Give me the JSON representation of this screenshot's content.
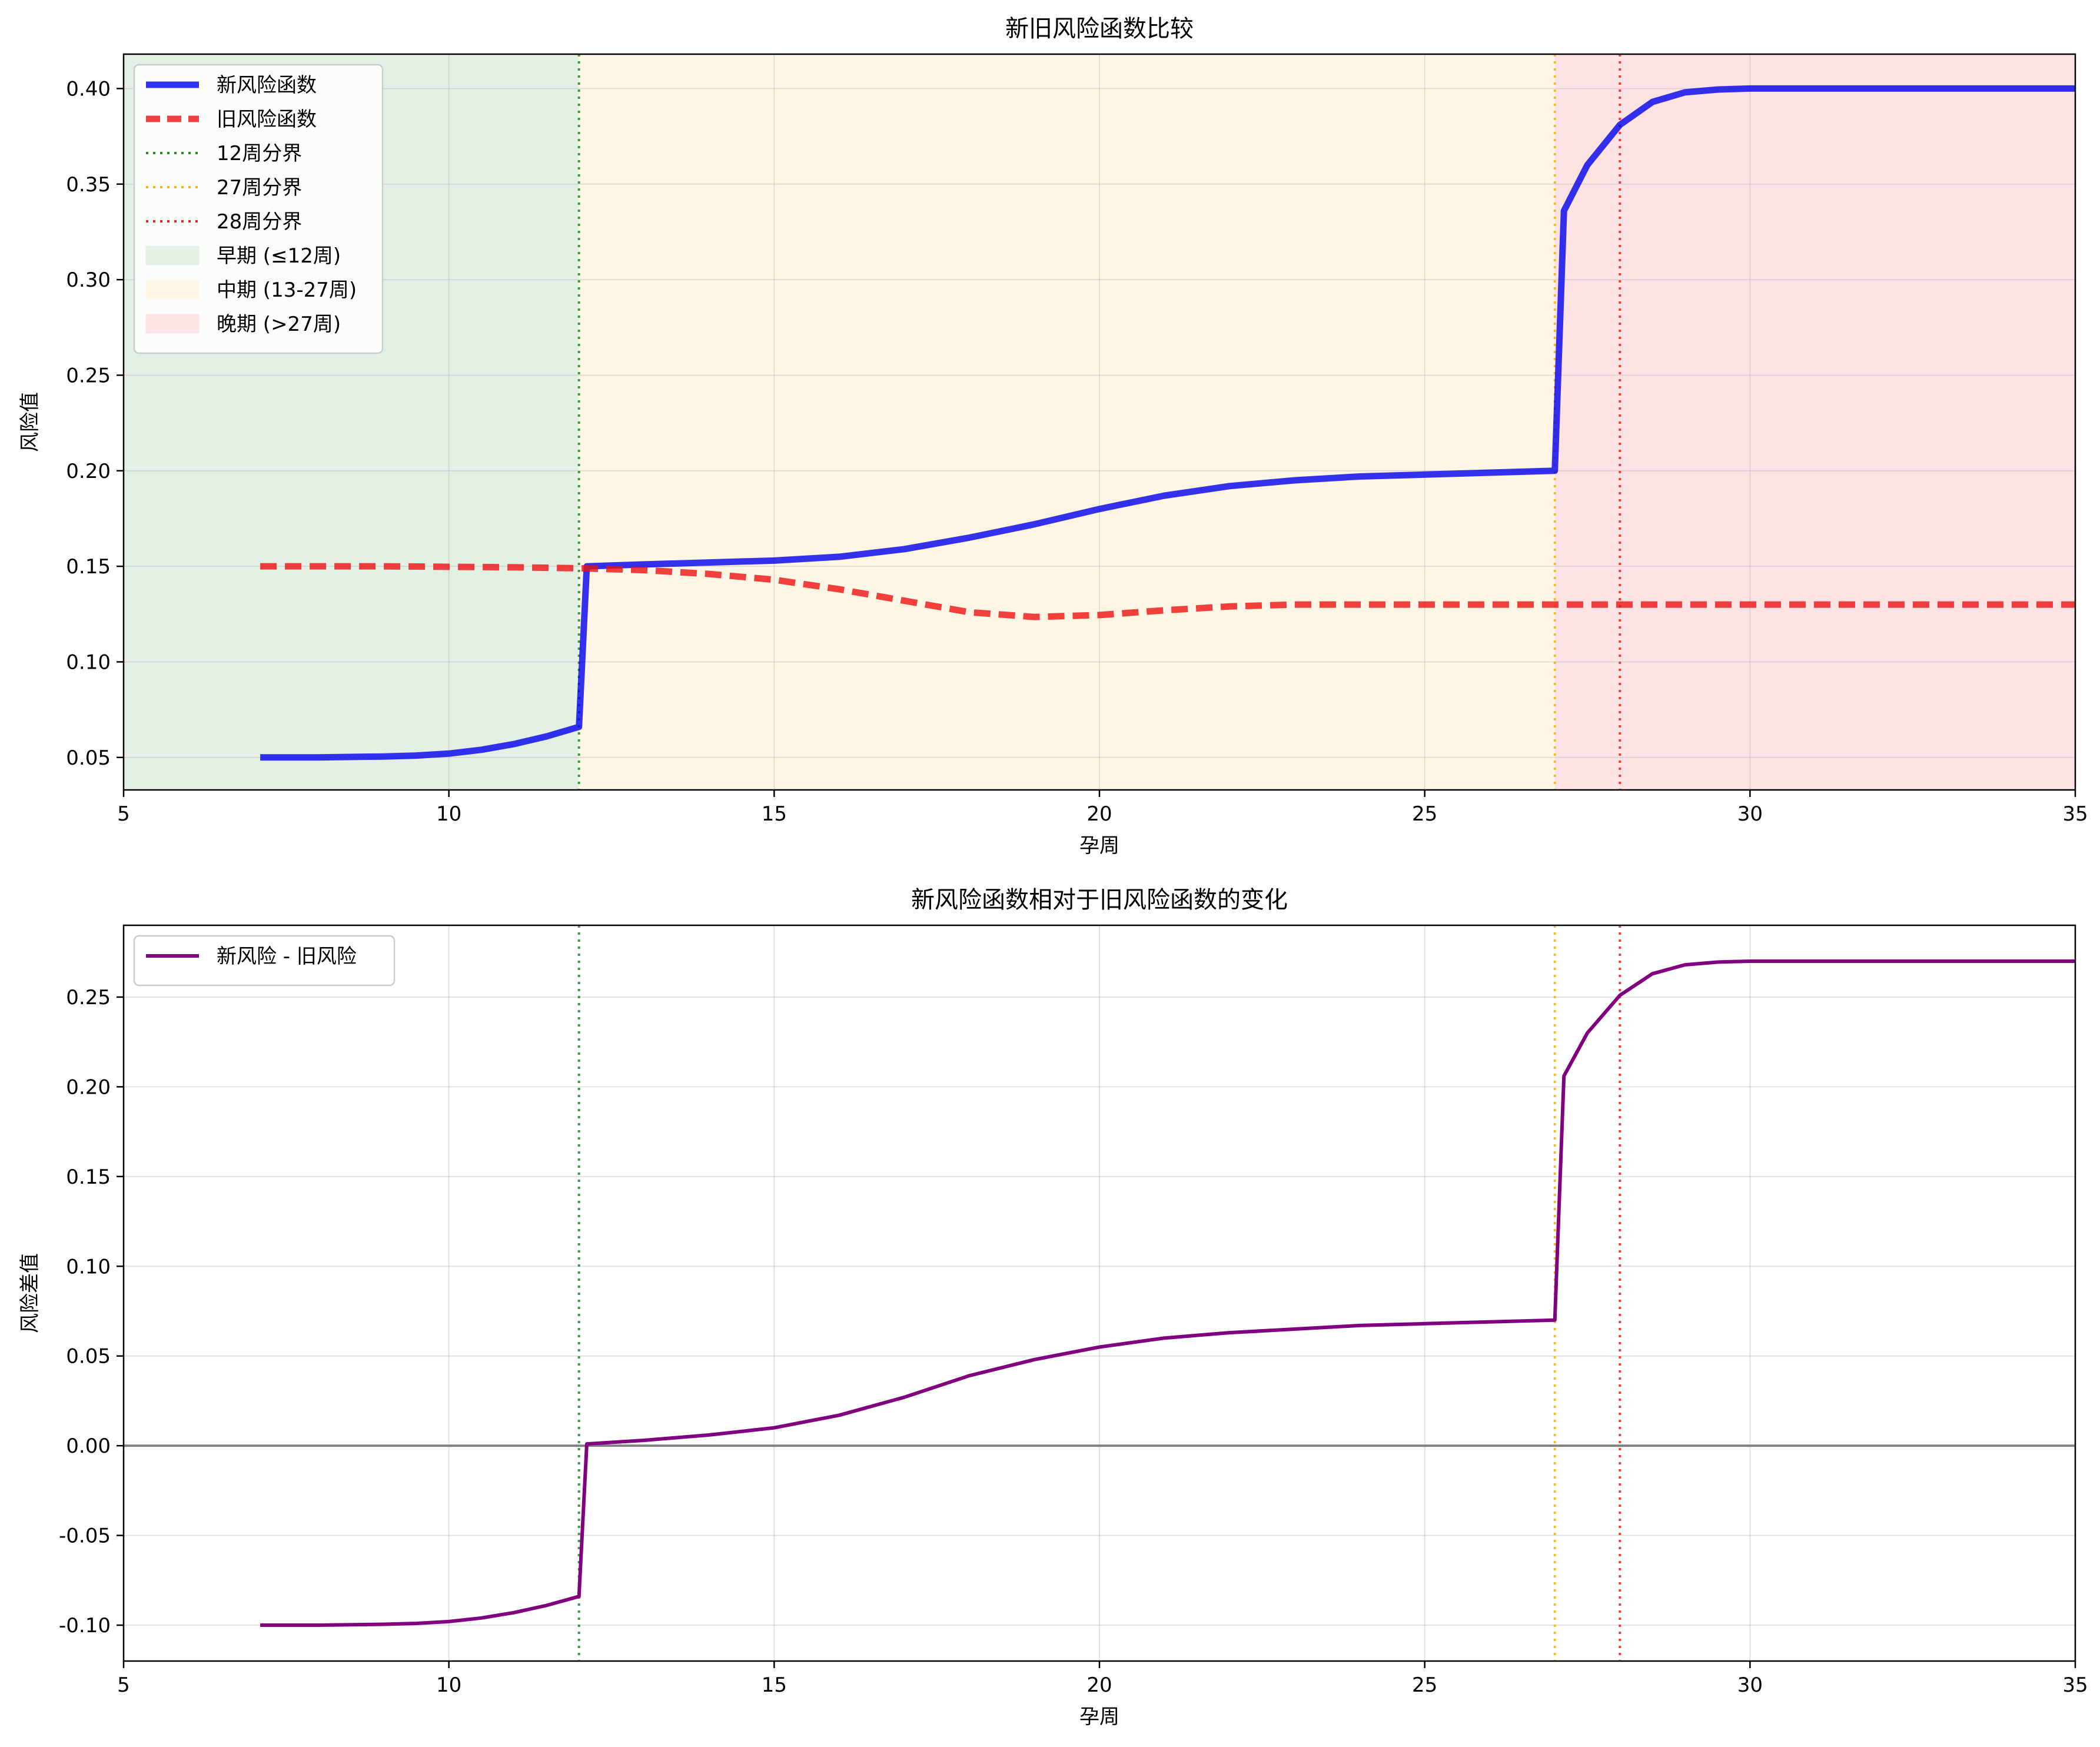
{
  "chart_data": [
    {
      "type": "line",
      "title": "新旧风险函数比较",
      "xlabel": "孕周",
      "ylabel": "风险值",
      "xlim": [
        5,
        35
      ],
      "ylim": [
        0.033,
        0.418
      ],
      "xticks": [
        5,
        10,
        15,
        20,
        25,
        30,
        35
      ],
      "xtick_labels": [
        "5",
        "10",
        "15",
        "20",
        "25",
        "30",
        "35"
      ],
      "yticks": [
        0.05,
        0.1,
        0.15,
        0.2,
        0.25,
        0.3,
        0.35,
        0.4
      ],
      "ytick_labels": [
        "0.05",
        "0.10",
        "0.15",
        "0.20",
        "0.25",
        "0.30",
        "0.35",
        "0.40"
      ],
      "grid": true,
      "legend_position": "top-left",
      "series": [
        {
          "name": "新风险函数",
          "color": "#0000ee",
          "style": "solid",
          "x": [
            7.1,
            8,
            9,
            9.5,
            10,
            10.5,
            11,
            11.5,
            12,
            12.12,
            13,
            14,
            15,
            16,
            17,
            18,
            19,
            20,
            21,
            22,
            23,
            24,
            25,
            26,
            27,
            27.14,
            27.5,
            28,
            28.5,
            29,
            29.5,
            30,
            31,
            32,
            33,
            34,
            35
          ],
          "y": [
            0.05,
            0.05,
            0.0505,
            0.051,
            0.052,
            0.054,
            0.057,
            0.061,
            0.066,
            0.15,
            0.151,
            0.152,
            0.153,
            0.155,
            0.159,
            0.165,
            0.172,
            0.18,
            0.187,
            0.192,
            0.195,
            0.197,
            0.198,
            0.199,
            0.2,
            0.336,
            0.36,
            0.381,
            0.393,
            0.398,
            0.3995,
            0.4,
            0.4,
            0.4,
            0.4,
            0.4,
            0.4
          ]
        },
        {
          "name": "旧风险函数",
          "color": "#ee1111",
          "style": "dashed",
          "x": [
            7.1,
            9,
            11,
            12,
            13,
            14,
            15,
            16,
            17,
            18,
            19,
            20,
            21,
            22,
            23,
            24,
            25,
            27,
            30,
            35
          ],
          "y": [
            0.15,
            0.15,
            0.1495,
            0.149,
            0.148,
            0.146,
            0.143,
            0.138,
            0.132,
            0.126,
            0.1235,
            0.1245,
            0.127,
            0.129,
            0.13,
            0.13,
            0.13,
            0.13,
            0.13,
            0.13
          ]
        }
      ],
      "vlines": [
        {
          "name": "12周分界",
          "x": 12,
          "color": "#228b22"
        },
        {
          "name": "27周分界",
          "x": 27,
          "color": "#f5b20a"
        },
        {
          "name": "28周分界",
          "x": 28,
          "color": "#ee2222"
        }
      ],
      "spans": [
        {
          "name": "早期 (≤12周)",
          "x0": 5,
          "x1": 12,
          "color": "#e5f0e5"
        },
        {
          "name": "中期 (13-27周)",
          "x0": 12,
          "x1": 27,
          "color": "#fef5e5"
        },
        {
          "name": "晚期 (>27周)",
          "x0": 27,
          "x1": 35,
          "color": "#fee3e5"
        }
      ]
    },
    {
      "type": "line",
      "title": "新风险函数相对于旧风险函数的变化",
      "xlabel": "孕周",
      "ylabel": "风险差值",
      "xlim": [
        5,
        35
      ],
      "ylim": [
        -0.12,
        0.29
      ],
      "xticks": [
        5,
        10,
        15,
        20,
        25,
        30,
        35
      ],
      "xtick_labels": [
        "5",
        "10",
        "15",
        "20",
        "25",
        "30",
        "35"
      ],
      "yticks": [
        -0.1,
        -0.05,
        0.0,
        0.05,
        0.1,
        0.15,
        0.2,
        0.25
      ],
      "ytick_labels": [
        "-0.10",
        "-0.05",
        "0.00",
        "0.05",
        "0.10",
        "0.15",
        "0.20",
        "0.25"
      ],
      "grid": true,
      "legend_position": "top-left",
      "hline": {
        "y": 0,
        "color": "#808080"
      },
      "series": [
        {
          "name": "新风险 - 旧风险",
          "color": "#800080",
          "style": "solid",
          "x": [
            7.1,
            8,
            9,
            9.5,
            10,
            10.5,
            11,
            11.5,
            12,
            12.12,
            13,
            14,
            15,
            16,
            17,
            18,
            19,
            20,
            21,
            22,
            23,
            24,
            25,
            26,
            27,
            27.14,
            27.5,
            28,
            28.5,
            29,
            29.5,
            30,
            31,
            32,
            33,
            34,
            35
          ],
          "y": [
            -0.1,
            -0.1,
            -0.0995,
            -0.099,
            -0.098,
            -0.096,
            -0.093,
            -0.089,
            -0.084,
            0.001,
            0.003,
            0.006,
            0.01,
            0.017,
            0.027,
            0.039,
            0.048,
            0.055,
            0.06,
            0.063,
            0.065,
            0.067,
            0.068,
            0.069,
            0.07,
            0.206,
            0.23,
            0.251,
            0.263,
            0.268,
            0.2695,
            0.27,
            0.27,
            0.27,
            0.27,
            0.27,
            0.27
          ]
        }
      ],
      "vlines": [
        {
          "x": 12,
          "color": "#228b22"
        },
        {
          "x": 27,
          "color": "#f5b20a"
        },
        {
          "x": 28,
          "color": "#ee2222"
        }
      ]
    }
  ]
}
